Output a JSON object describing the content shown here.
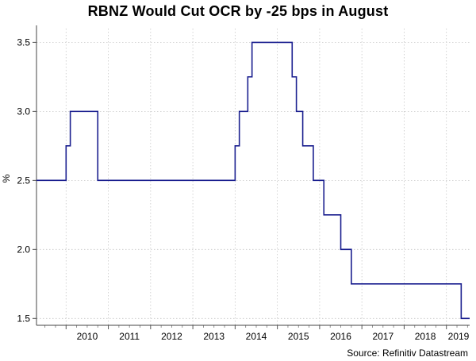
{
  "chart_data": {
    "type": "line",
    "title": "RBNZ Would Cut OCR by -25 bps in August",
    "ylabel": "%",
    "xlabel": "",
    "source": "Source: Refinitiv Datastream",
    "ylim": [
      1.45,
      3.6
    ],
    "xlim": [
      2009.3,
      2019.55
    ],
    "x_ticks": [
      "2010",
      "2011",
      "2012",
      "2013",
      "2014",
      "2015",
      "2016",
      "2017",
      "2018",
      "2019"
    ],
    "y_ticks": [
      "1.5",
      "2.0",
      "2.5",
      "3.0",
      "3.5"
    ],
    "grid": true,
    "line_color": "#1a1f8f",
    "series": [
      {
        "values_step": [
          [
            2009.3,
            2.5
          ],
          [
            2010.0,
            2.75
          ],
          [
            2010.1,
            3.0
          ],
          [
            2010.75,
            2.5
          ],
          [
            2014.0,
            2.75
          ],
          [
            2014.1,
            3.0
          ],
          [
            2014.3,
            3.25
          ],
          [
            2014.4,
            3.5
          ],
          [
            2015.35,
            3.25
          ],
          [
            2015.45,
            3.0
          ],
          [
            2015.6,
            2.75
          ],
          [
            2015.85,
            2.5
          ],
          [
            2016.1,
            2.25
          ],
          [
            2016.5,
            2.0
          ],
          [
            2016.75,
            1.75
          ],
          [
            2019.35,
            1.5
          ],
          [
            2019.55,
            1.5
          ]
        ]
      }
    ]
  }
}
